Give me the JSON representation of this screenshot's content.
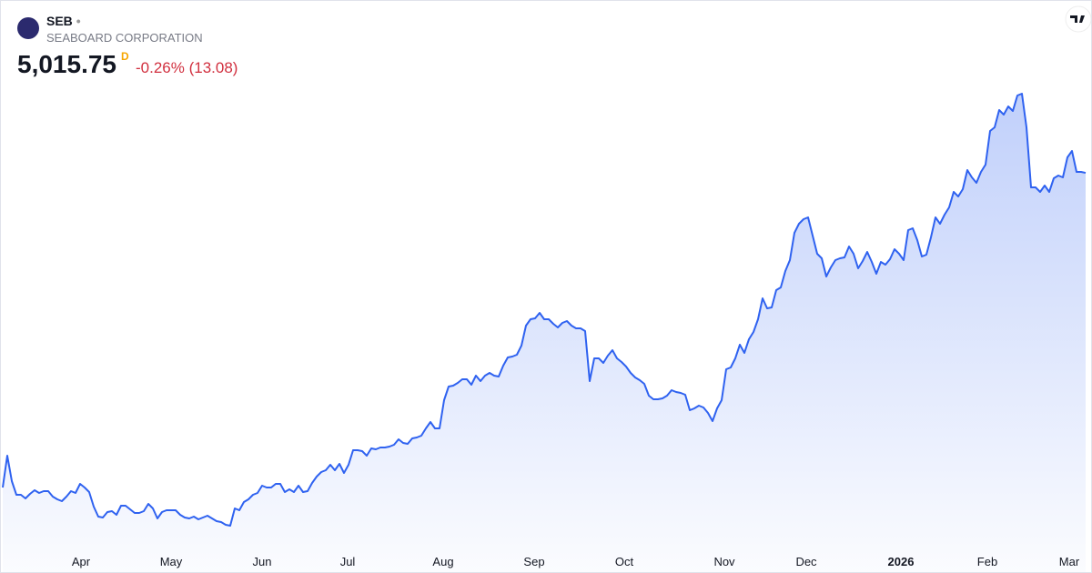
{
  "header": {
    "symbol": "SEB",
    "name": "SEABOARD CORPORATION",
    "price": "5,015.75",
    "interval": "D",
    "change": "-0.26% (13.08)"
  },
  "chart_data": {
    "type": "area",
    "color": "#2f62f0",
    "values": [
      2940,
      3150,
      2982,
      2892,
      2892,
      2868,
      2898,
      2922,
      2904,
      2916,
      2916,
      2880,
      2862,
      2850,
      2880,
      2916,
      2904,
      2964,
      2940,
      2910,
      2814,
      2748,
      2742,
      2778,
      2784,
      2760,
      2820,
      2820,
      2796,
      2772,
      2772,
      2784,
      2832,
      2802,
      2736,
      2778,
      2790,
      2790,
      2790,
      2760,
      2742,
      2736,
      2748,
      2730,
      2742,
      2754,
      2736,
      2718,
      2712,
      2694,
      2688,
      2802,
      2790,
      2844,
      2862,
      2892,
      2904,
      2952,
      2940,
      2940,
      2964,
      2964,
      2910,
      2928,
      2910,
      2952,
      2910,
      2916,
      2970,
      3012,
      3042,
      3054,
      3090,
      3054,
      3096,
      3036,
      3090,
      3186,
      3186,
      3180,
      3150,
      3198,
      3192,
      3204,
      3204,
      3210,
      3222,
      3258,
      3234,
      3228,
      3264,
      3270,
      3282,
      3330,
      3372,
      3330,
      3330,
      3516,
      3606,
      3612,
      3630,
      3654,
      3654,
      3618,
      3678,
      3642,
      3678,
      3696,
      3678,
      3672,
      3744,
      3798,
      3804,
      3816,
      3876,
      4008,
      4050,
      4056,
      4092,
      4050,
      4050,
      4020,
      3996,
      4026,
      4038,
      4008,
      3990,
      3990,
      3972,
      3642,
      3792,
      3792,
      3762,
      3810,
      3846,
      3792,
      3768,
      3738,
      3696,
      3666,
      3648,
      3624,
      3546,
      3522,
      3522,
      3528,
      3546,
      3582,
      3570,
      3564,
      3552,
      3450,
      3462,
      3480,
      3468,
      3432,
      3378,
      3462,
      3516,
      3720,
      3732,
      3792,
      3882,
      3828,
      3918,
      3966,
      4050,
      4188,
      4122,
      4128,
      4242,
      4260,
      4368,
      4440,
      4620,
      4680,
      4710,
      4722,
      4602,
      4482,
      4452,
      4332,
      4392,
      4440,
      4452,
      4458,
      4530,
      4482,
      4386,
      4434,
      4494,
      4428,
      4350,
      4428,
      4410,
      4446,
      4512,
      4482,
      4440,
      4638,
      4650,
      4572,
      4464,
      4476,
      4590,
      4722,
      4680,
      4740,
      4788,
      4890,
      4860,
      4908,
      5034,
      4986,
      4950,
      5022,
      5070,
      5292,
      5316,
      5430,
      5400,
      5454,
      5424,
      5526,
      5538,
      5316,
      4920,
      4920,
      4890,
      4932,
      4890,
      4980,
      4998,
      4986,
      5118,
      5160,
      5022,
      5022,
      5015.75
    ],
    "xlim": [
      0,
      238
    ],
    "ylim": [
      2550,
      5610
    ],
    "xticks": [
      {
        "value": 17.2,
        "label": "Apr"
      },
      {
        "value": 37,
        "label": "May"
      },
      {
        "value": 57,
        "label": "Jun"
      },
      {
        "value": 75.8,
        "label": "Jul"
      },
      {
        "value": 96.8,
        "label": "Aug"
      },
      {
        "value": 116.8,
        "label": "Sep"
      },
      {
        "value": 136.6,
        "label": "Oct"
      },
      {
        "value": 158.6,
        "label": "Nov"
      },
      {
        "value": 176.6,
        "label": "Dec"
      },
      {
        "value": 197.4,
        "label": "2026"
      },
      {
        "value": 216.4,
        "label": "Feb"
      },
      {
        "value": 234.4,
        "label": "Mar"
      }
    ]
  }
}
